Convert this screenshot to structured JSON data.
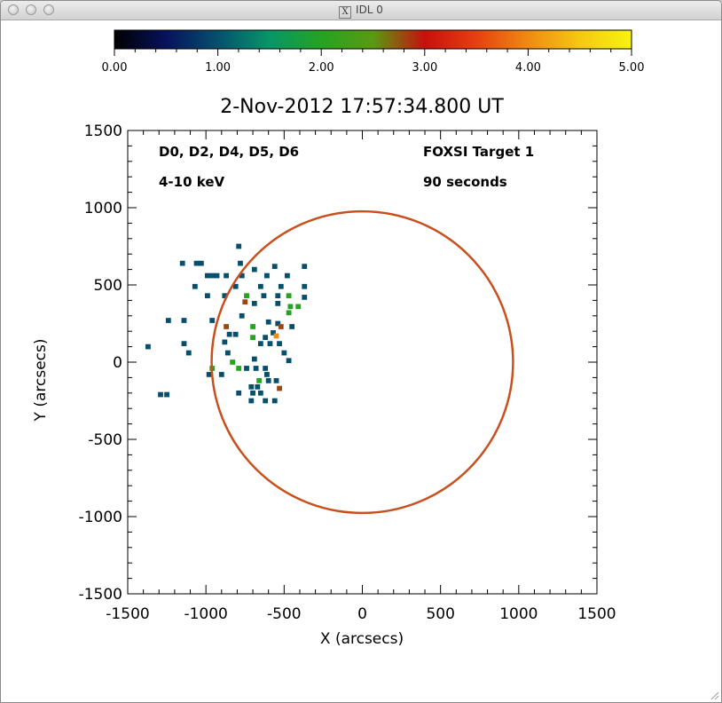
{
  "window": {
    "title": "IDL 0",
    "title_icon": "x11-icon"
  },
  "colorbar": {
    "ticks": [
      "0.00",
      "1.00",
      "2.00",
      "3.00",
      "4.00",
      "5.00"
    ],
    "range": [
      0,
      5
    ],
    "colormap": [
      "#000000",
      "#07125c",
      "#06506e",
      "#079668",
      "#26a322",
      "#5a9a12",
      "#c8100e",
      "#e54010",
      "#f08a12",
      "#f5c812",
      "#f7f410"
    ]
  },
  "plot": {
    "title": "2-Nov-2012 17:57:34.800 UT",
    "annotation_left_1": "D0, D2, D4, D5, D6",
    "annotation_left_2": "4-10 keV",
    "annotation_right_1": "FOXSI Target 1",
    "annotation_right_2": "90 seconds",
    "xlabel": "X (arcsecs)",
    "ylabel": "Y (arcsecs)",
    "xticks": [
      "-1500",
      "-1000",
      "-500",
      "0",
      "500",
      "1000",
      "1500"
    ],
    "yticks": [
      "-1500",
      "-1000",
      "-500",
      "0",
      "500",
      "1000",
      "1500"
    ]
  },
  "chart_data": {
    "type": "heatmap",
    "title": "2-Nov-2012 17:57:34.800 UT",
    "xlabel": "X (arcsecs)",
    "ylabel": "Y (arcsecs)",
    "xlim": [
      -1500,
      1500
    ],
    "ylim": [
      -1500,
      1500
    ],
    "pixel_size": 33,
    "color_range": [
      0,
      5
    ],
    "limb_radius": 970,
    "limb_color": "#c8501e",
    "pixels": [
      {
        "x": -790,
        "y": 750,
        "v": 1
      },
      {
        "x": -1150,
        "y": 640,
        "v": 1
      },
      {
        "x": -1060,
        "y": 640,
        "v": 1
      },
      {
        "x": -1030,
        "y": 640,
        "v": 1
      },
      {
        "x": -780,
        "y": 640,
        "v": 1
      },
      {
        "x": -560,
        "y": 620,
        "v": 1
      },
      {
        "x": -370,
        "y": 620,
        "v": 1
      },
      {
        "x": -690,
        "y": 600,
        "v": 1
      },
      {
        "x": -990,
        "y": 560,
        "v": 1
      },
      {
        "x": -960,
        "y": 560,
        "v": 1
      },
      {
        "x": -930,
        "y": 560,
        "v": 1
      },
      {
        "x": -870,
        "y": 560,
        "v": 1
      },
      {
        "x": -770,
        "y": 560,
        "v": 1
      },
      {
        "x": -610,
        "y": 560,
        "v": 1
      },
      {
        "x": -480,
        "y": 560,
        "v": 1
      },
      {
        "x": -1070,
        "y": 490,
        "v": 1
      },
      {
        "x": -810,
        "y": 490,
        "v": 1
      },
      {
        "x": -650,
        "y": 490,
        "v": 1
      },
      {
        "x": -520,
        "y": 490,
        "v": 1
      },
      {
        "x": -370,
        "y": 490,
        "v": 1
      },
      {
        "x": -990,
        "y": 430,
        "v": 1
      },
      {
        "x": -880,
        "y": 430,
        "v": 1
      },
      {
        "x": -740,
        "y": 430,
        "v": 2
      },
      {
        "x": -630,
        "y": 430,
        "v": 1
      },
      {
        "x": -540,
        "y": 430,
        "v": 1
      },
      {
        "x": -470,
        "y": 430,
        "v": 2
      },
      {
        "x": -370,
        "y": 420,
        "v": 1
      },
      {
        "x": -750,
        "y": 390,
        "v": 2.8
      },
      {
        "x": -690,
        "y": 380,
        "v": 1
      },
      {
        "x": -540,
        "y": 380,
        "v": 1
      },
      {
        "x": -460,
        "y": 360,
        "v": 2
      },
      {
        "x": -410,
        "y": 360,
        "v": 2
      },
      {
        "x": -470,
        "y": 320,
        "v": 2
      },
      {
        "x": -1240,
        "y": 270,
        "v": 1
      },
      {
        "x": -1140,
        "y": 270,
        "v": 1
      },
      {
        "x": -960,
        "y": 270,
        "v": 1
      },
      {
        "x": -770,
        "y": 300,
        "v": 1
      },
      {
        "x": -870,
        "y": 230,
        "v": 2.8
      },
      {
        "x": -700,
        "y": 230,
        "v": 2
      },
      {
        "x": -600,
        "y": 260,
        "v": 1
      },
      {
        "x": -540,
        "y": 250,
        "v": 1
      },
      {
        "x": -450,
        "y": 230,
        "v": 1
      },
      {
        "x": -850,
        "y": 180,
        "v": 1
      },
      {
        "x": -810,
        "y": 180,
        "v": 1
      },
      {
        "x": -700,
        "y": 160,
        "v": 2
      },
      {
        "x": -620,
        "y": 160,
        "v": 1
      },
      {
        "x": -570,
        "y": 190,
        "v": 1
      },
      {
        "x": -520,
        "y": 230,
        "v": 2.8
      },
      {
        "x": -550,
        "y": 170,
        "v": 4
      },
      {
        "x": -1370,
        "y": 100,
        "v": 1
      },
      {
        "x": -1140,
        "y": 120,
        "v": 1
      },
      {
        "x": -880,
        "y": 130,
        "v": 1
      },
      {
        "x": -650,
        "y": 120,
        "v": 1
      },
      {
        "x": -590,
        "y": 120,
        "v": 1
      },
      {
        "x": -530,
        "y": 120,
        "v": 1
      },
      {
        "x": -1110,
        "y": 60,
        "v": 1
      },
      {
        "x": -860,
        "y": 60,
        "v": 1
      },
      {
        "x": -500,
        "y": 60,
        "v": 1
      },
      {
        "x": -830,
        "y": 0,
        "v": 2
      },
      {
        "x": -690,
        "y": 20,
        "v": 1
      },
      {
        "x": -470,
        "y": 10,
        "v": 1
      },
      {
        "x": -960,
        "y": -40,
        "v": 2
      },
      {
        "x": -790,
        "y": -40,
        "v": 2
      },
      {
        "x": -740,
        "y": -40,
        "v": 1
      },
      {
        "x": -680,
        "y": -40,
        "v": 1
      },
      {
        "x": -620,
        "y": -40,
        "v": 1
      },
      {
        "x": -980,
        "y": -80,
        "v": 1
      },
      {
        "x": -900,
        "y": -80,
        "v": 1
      },
      {
        "x": -610,
        "y": -80,
        "v": 1
      },
      {
        "x": -660,
        "y": -120,
        "v": 2
      },
      {
        "x": -600,
        "y": -120,
        "v": 1
      },
      {
        "x": -550,
        "y": -120,
        "v": 1
      },
      {
        "x": -710,
        "y": -160,
        "v": 1
      },
      {
        "x": -670,
        "y": -160,
        "v": 1
      },
      {
        "x": -530,
        "y": -170,
        "v": 2.8
      },
      {
        "x": -1290,
        "y": -210,
        "v": 1
      },
      {
        "x": -1250,
        "y": -210,
        "v": 1
      },
      {
        "x": -790,
        "y": -200,
        "v": 1
      },
      {
        "x": -700,
        "y": -200,
        "v": 1
      },
      {
        "x": -650,
        "y": -200,
        "v": 1
      },
      {
        "x": -710,
        "y": -250,
        "v": 1
      },
      {
        "x": -620,
        "y": -250,
        "v": 1
      },
      {
        "x": -560,
        "y": -250,
        "v": 1
      }
    ]
  }
}
